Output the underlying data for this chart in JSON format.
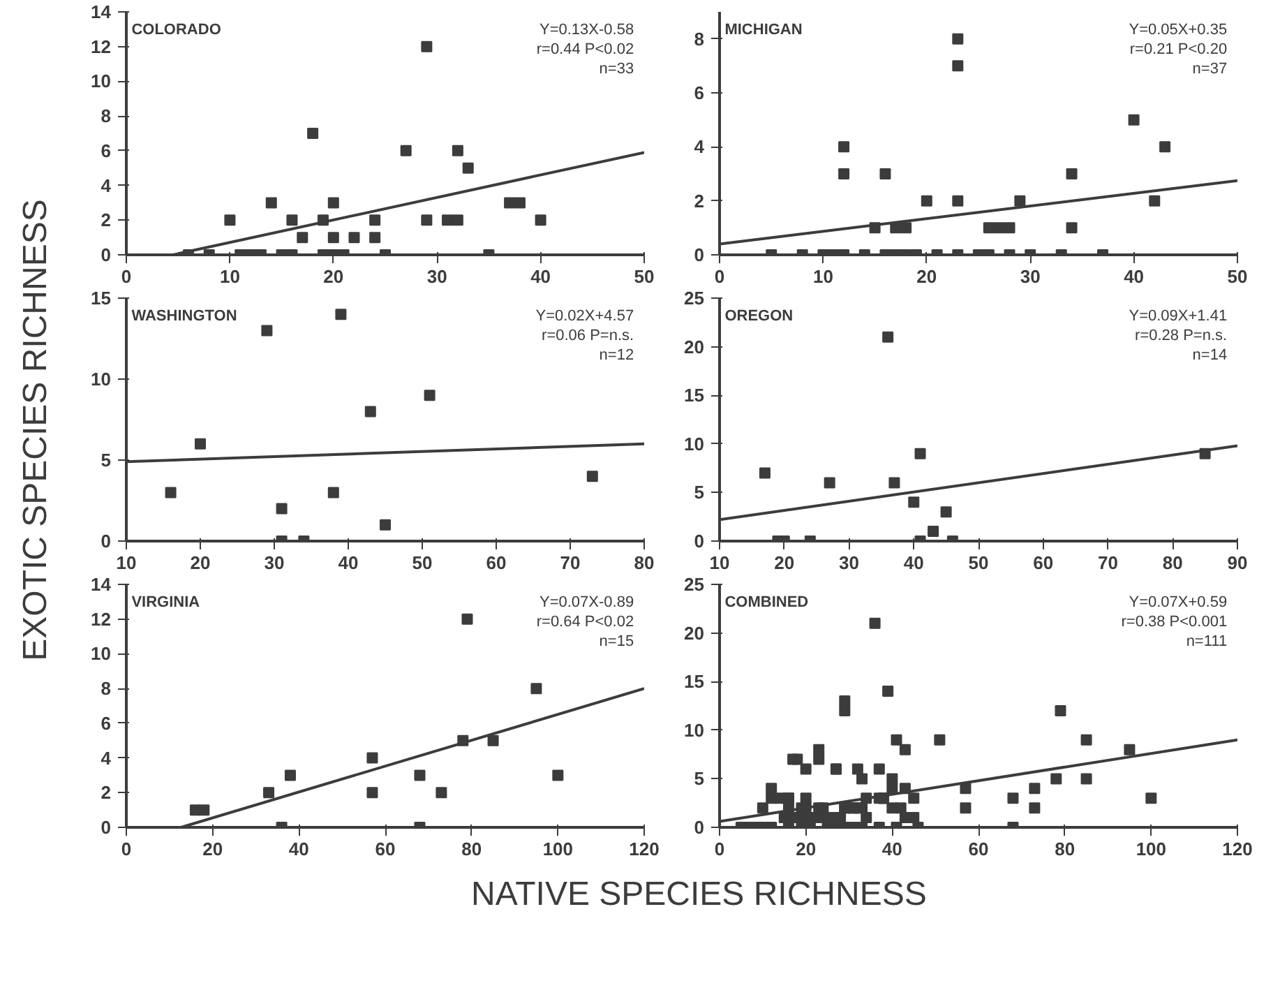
{
  "chart_data": [
    {
      "type": "scatter",
      "title": "COLORADO",
      "xlim": [
        0,
        50
      ],
      "xticks": [
        0,
        10,
        20,
        30,
        40,
        50
      ],
      "ylim": [
        0,
        14
      ],
      "yticks": [
        0,
        2,
        4,
        6,
        8,
        10,
        12,
        14
      ],
      "annotations": [
        "Y=0.13X-0.58",
        "r=0.44 P<0.02",
        "n=33"
      ],
      "series": [
        {
          "marker": "square",
          "color": "#3c3c3c",
          "x": [
            10,
            14,
            16,
            17,
            18,
            19,
            20,
            20,
            22,
            24,
            24,
            27,
            29,
            29,
            31,
            32,
            32,
            33,
            37,
            38,
            40,
            6,
            8,
            11,
            12,
            13,
            15,
            16,
            19,
            20,
            21,
            25,
            35
          ],
          "values": [
            2,
            3,
            2,
            1,
            7,
            2,
            3,
            1,
            1,
            1,
            2,
            6,
            12,
            2,
            2,
            2,
            6,
            5,
            3,
            3,
            2,
            0,
            0,
            0,
            0,
            0,
            0,
            0,
            0,
            0,
            0,
            0,
            0
          ]
        },
        {
          "type": "line",
          "color": "#3c3c3c",
          "x": [
            4.5,
            50
          ],
          "values": [
            0,
            5.9
          ]
        }
      ]
    },
    {
      "type": "scatter",
      "title": "MICHIGAN",
      "xlim": [
        0,
        50
      ],
      "xticks": [
        0,
        10,
        20,
        30,
        40,
        50
      ],
      "ylim": [
        0,
        9
      ],
      "yticks": [
        0,
        2,
        4,
        6,
        8
      ],
      "annotations": [
        "Y=0.05X+0.35",
        "r=0.21 P<0.20",
        "n=37"
      ],
      "series": [
        {
          "marker": "square",
          "color": "#3c3c3c",
          "x": [
            12,
            12,
            16,
            15,
            17,
            18,
            20,
            23,
            23,
            23,
            26,
            27,
            28,
            29,
            34,
            34,
            40,
            43,
            42,
            5,
            8,
            10,
            11,
            12,
            14,
            16,
            17,
            18,
            19,
            21,
            23,
            25,
            26,
            28,
            30,
            33,
            37
          ],
          "values": [
            4,
            3,
            3,
            1,
            1,
            1,
            2,
            2,
            7,
            8,
            1,
            1,
            1,
            2,
            3,
            1,
            5,
            4,
            2,
            0,
            0,
            0,
            0,
            0,
            0,
            0,
            0,
            0,
            0,
            0,
            0,
            0,
            0,
            0,
            0,
            0,
            0
          ]
        },
        {
          "type": "line",
          "color": "#3c3c3c",
          "x": [
            0,
            50
          ],
          "values": [
            0.4,
            2.75
          ]
        }
      ]
    },
    {
      "type": "scatter",
      "title": "WASHINGTON",
      "ylabel": "EXOTIC SPECIES RICHNESS",
      "xlim": [
        10,
        80
      ],
      "xticks": [
        10,
        20,
        30,
        40,
        50,
        60,
        70,
        80
      ],
      "ylim": [
        0,
        15
      ],
      "yticks": [
        0,
        5,
        10,
        15
      ],
      "annotations": [
        "Y=0.02X+4.57",
        "r=0.06 P=n.s.",
        "n=12"
      ],
      "series": [
        {
          "marker": "square",
          "color": "#3c3c3c",
          "x": [
            16,
            20,
            29,
            31,
            38,
            39,
            43,
            45,
            51,
            73,
            31,
            34
          ],
          "values": [
            3,
            6,
            13,
            2,
            3,
            14,
            8,
            1,
            9,
            4,
            0,
            0
          ]
        },
        {
          "type": "line",
          "color": "#3c3c3c",
          "x": [
            10,
            80
          ],
          "values": [
            4.9,
            6.0
          ]
        }
      ]
    },
    {
      "type": "scatter",
      "title": "OREGON",
      "xlim": [
        10,
        90
      ],
      "xticks": [
        10,
        20,
        30,
        40,
        50,
        60,
        70,
        80,
        90
      ],
      "ylim": [
        0,
        25
      ],
      "yticks": [
        0,
        5,
        10,
        15,
        20,
        25
      ],
      "annotations": [
        "Y=0.09X+1.41",
        "r=0.28 P=n.s.",
        "n=14"
      ],
      "series": [
        {
          "marker": "square",
          "color": "#3c3c3c",
          "x": [
            17,
            27,
            36,
            37,
            40,
            41,
            43,
            45,
            85,
            19,
            20,
            24,
            41,
            46
          ],
          "values": [
            7,
            6,
            21,
            6,
            4,
            9,
            1,
            3,
            9,
            0,
            0,
            0,
            0,
            0
          ]
        },
        {
          "type": "line",
          "color": "#3c3c3c",
          "x": [
            10,
            90
          ],
          "values": [
            2.2,
            9.8
          ]
        }
      ]
    },
    {
      "type": "scatter",
      "title": "VIRGINIA",
      "xlabel": "NATIVE SPECIES RICHNESS",
      "xlim": [
        0,
        120
      ],
      "xticks": [
        0,
        20,
        40,
        60,
        80,
        100,
        120
      ],
      "ylim": [
        0,
        14
      ],
      "yticks": [
        0,
        2,
        4,
        6,
        8,
        10,
        12,
        14
      ],
      "annotations": [
        "Y=0.07X-0.89",
        "r=0.64 P<0.02",
        "n=15"
      ],
      "series": [
        {
          "marker": "square",
          "color": "#3c3c3c",
          "x": [
            16,
            18,
            33,
            38,
            36,
            57,
            57,
            68,
            73,
            79,
            78,
            85,
            95,
            100,
            68
          ],
          "values": [
            1,
            1,
            2,
            3,
            0,
            4,
            2,
            3,
            2,
            12,
            5,
            5,
            8,
            3,
            0
          ]
        },
        {
          "type": "line",
          "color": "#3c3c3c",
          "x": [
            12.7,
            120
          ],
          "values": [
            0,
            8.0
          ]
        }
      ]
    },
    {
      "type": "scatter",
      "title": "COMBINED",
      "xlim": [
        0,
        120
      ],
      "xticks": [
        0,
        20,
        40,
        60,
        80,
        100,
        120
      ],
      "ylim": [
        0,
        25
      ],
      "yticks": [
        0,
        5,
        10,
        15,
        20,
        25
      ],
      "annotations": [
        "Y=0.07X+0.59",
        "r=0.38 P<0.001",
        "n=111"
      ],
      "series": [
        {
          "marker": "square",
          "color": "#3c3c3c",
          "x": [
            10,
            14,
            16,
            17,
            18,
            19,
            20,
            20,
            22,
            24,
            24,
            27,
            29,
            29,
            31,
            32,
            32,
            33,
            37,
            38,
            40,
            6,
            8,
            12,
            16,
            19,
            21,
            25,
            12,
            12,
            16,
            15,
            18,
            20,
            23,
            23,
            23,
            26,
            28,
            29,
            34,
            34,
            40,
            43,
            42,
            5,
            10,
            26,
            28,
            30,
            33,
            37,
            16,
            20,
            29,
            31,
            38,
            39,
            43,
            45,
            51,
            73,
            31,
            17,
            27,
            36,
            37,
            40,
            41,
            43,
            45,
            85,
            41,
            46,
            33,
            38,
            57,
            57,
            68,
            73,
            79,
            78,
            85,
            95,
            100,
            68
          ],
          "values": [
            2,
            3,
            2,
            1,
            7,
            2,
            3,
            1,
            1,
            1,
            2,
            6,
            12,
            2,
            2,
            2,
            6,
            5,
            3,
            3,
            2,
            0,
            0,
            0,
            0,
            0,
            0,
            0,
            4,
            3,
            3,
            1,
            1,
            2,
            2,
            7,
            8,
            1,
            1,
            2,
            3,
            1,
            5,
            4,
            2,
            0,
            0,
            0,
            0,
            0,
            0,
            0,
            3,
            6,
            13,
            2,
            3,
            14,
            8,
            1,
            9,
            4,
            0,
            7,
            6,
            21,
            6,
            4,
            9,
            1,
            3,
            9,
            0,
            0,
            2,
            3,
            4,
            2,
            3,
            2,
            12,
            5,
            5,
            8,
            3,
            0
          ]
        },
        {
          "type": "line",
          "color": "#3c3c3c",
          "x": [
            0,
            120
          ],
          "values": [
            0.6,
            9.0
          ]
        }
      ]
    }
  ]
}
